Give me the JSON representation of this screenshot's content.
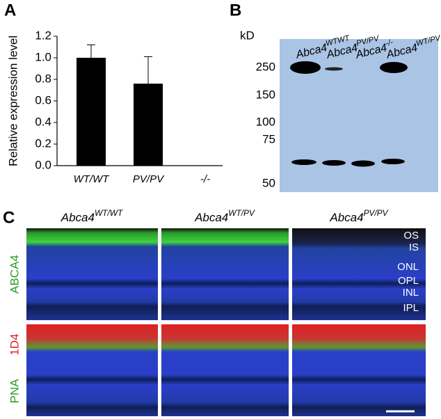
{
  "panels": {
    "a": "A",
    "b": "B",
    "c": "C"
  },
  "chart_data": {
    "type": "bar",
    "ylabel": "Relative expression level",
    "categories": [
      "WT/WT",
      "PV/PV",
      "-/-"
    ],
    "values": [
      1.0,
      0.76,
      0
    ],
    "errors": [
      0.12,
      0.25,
      null
    ],
    "color": "#000000",
    "ylim": [
      0,
      1.2
    ],
    "yticks": [
      {
        "value": 0,
        "label": "0.0"
      },
      0.2,
      0.4,
      0.6,
      0.8,
      {
        "value": 1,
        "label": "1.0"
      },
      1.2
    ]
  },
  "blot": {
    "unit": "kD",
    "markers": [
      "250",
      "150",
      "100",
      "75",
      "50"
    ],
    "lanes": [
      {
        "base": "Abca4",
        "sup": "WTWT"
      },
      {
        "base": "Abca4",
        "sup": "PV/PV"
      },
      {
        "base": "Abca4",
        "sup": "-/-"
      },
      {
        "base": "Abca4",
        "sup": "WT/PV"
      }
    ]
  },
  "micrographs": {
    "columns": [
      {
        "base": "Abca4",
        "sup": "WT/WT"
      },
      {
        "base": "Abca4",
        "sup": "WT/PV"
      },
      {
        "base": "Abca4",
        "sup": "PV/PV"
      }
    ],
    "row1": "ABCA4",
    "row2_top": "1D4",
    "row2_bottom": "PNA",
    "layers": [
      "OS",
      "IS",
      "ONL",
      "OPL",
      "INL",
      "IPL"
    ]
  }
}
